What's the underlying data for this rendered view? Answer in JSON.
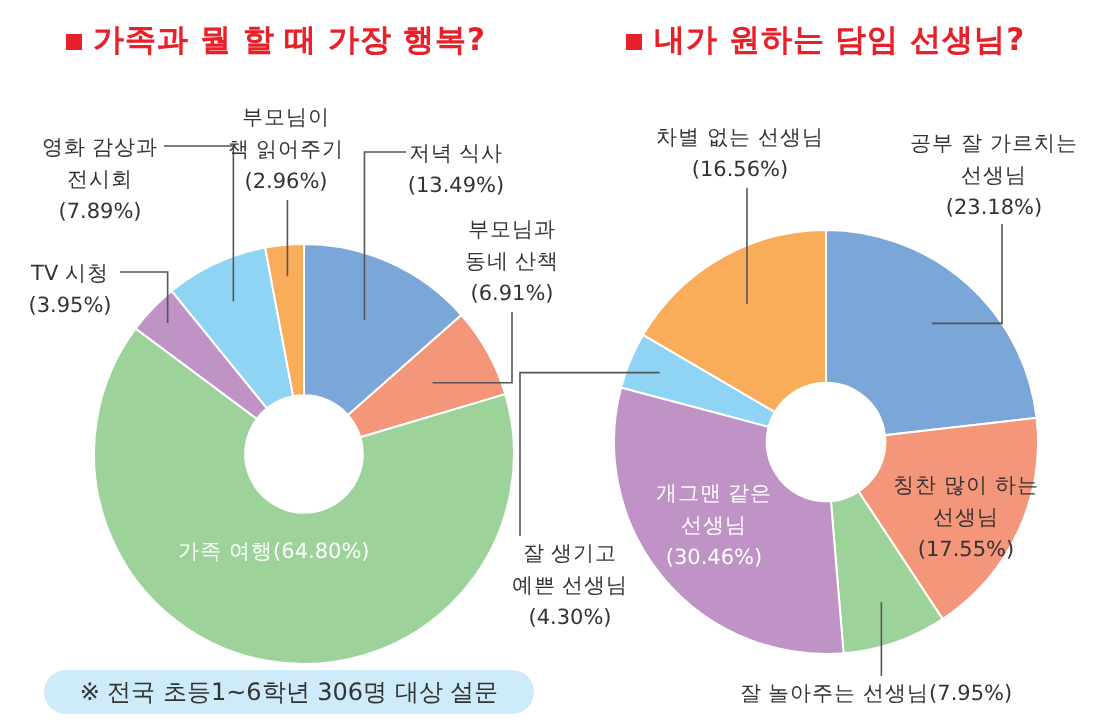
{
  "chart_data": [
    {
      "type": "donut",
      "title": "가족과 뭘 할 때 가장 행복?",
      "categories": [
        "저녁 식사",
        "부모님과\n동네 산책",
        "가족 여행",
        "TV 시청",
        "영화 감상과\n전시회",
        "부모님이\n책 읽어주기"
      ],
      "values": [
        13.49,
        6.91,
        64.8,
        3.95,
        7.89,
        2.96
      ],
      "value_labels": [
        "(13.49%)",
        "(6.91%)",
        "(64.80%)",
        "(3.95%)",
        "(7.89%)",
        "(2.96%)"
      ],
      "colors": [
        "#7ba7d8",
        "#f4967a",
        "#9dd39b",
        "#bf93c6",
        "#8fd4f5",
        "#f9ad5a"
      ],
      "annotations": [
        "※ 전국 초등1~6학년 306명 대상 설문"
      ]
    },
    {
      "type": "donut",
      "title": "내가 원하는 담임 선생님?",
      "categories": [
        "공부 잘 가르치는\n선생님",
        "칭찬 많이 하는\n선생님",
        "잘 놀아주는 선생님",
        "개그맨 같은\n선생님",
        "잘 생기고\n예쁜 선생님",
        "차별 없는 선생님"
      ],
      "values": [
        23.18,
        17.55,
        7.95,
        30.46,
        4.3,
        16.56
      ],
      "value_labels": [
        "(23.18%)",
        "(17.55%)",
        "(7.95%)",
        "(30.46%)",
        "(4.30%)",
        "(16.56%)"
      ],
      "colors": [
        "#7ba7d8",
        "#f4967a",
        "#9dd39b",
        "#bf93c6",
        "#8fd4f5",
        "#f9ad5a"
      ]
    }
  ]
}
